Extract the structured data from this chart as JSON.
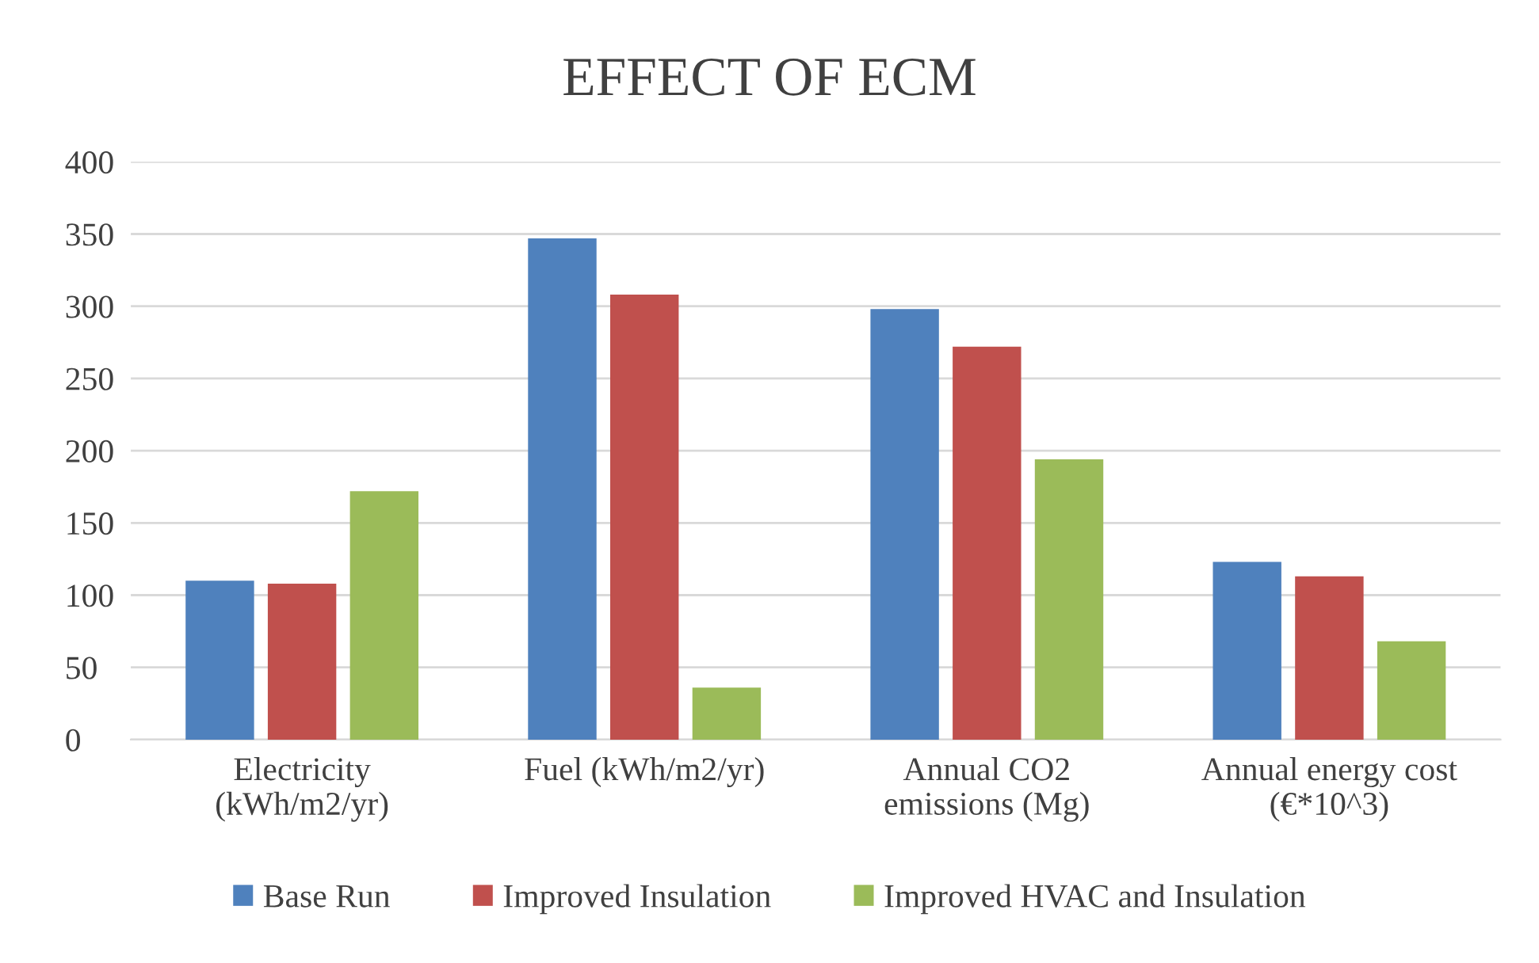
{
  "chart_data": {
    "type": "bar",
    "title": "EFFECT OF ECM",
    "categories": [
      "Electricity\n(kWh/m2/yr)",
      "Fuel (kWh/m2/yr)",
      "Annual CO2\nemissions (Mg)",
      "Annual energy cost\n(€*10^3)"
    ],
    "series": [
      {
        "name": "Base Run",
        "color": "#4f81bd",
        "values": [
          110,
          347,
          298,
          123
        ]
      },
      {
        "name": "Improved Insulation",
        "color": "#c0504d",
        "values": [
          108,
          308,
          272,
          113
        ]
      },
      {
        "name": "Improved HVAC and Insulation",
        "color": "#9bbb59",
        "values": [
          172,
          36,
          194,
          68
        ]
      }
    ],
    "ylim": [
      0,
      400
    ],
    "yticks": [
      0,
      50,
      100,
      150,
      200,
      250,
      300,
      350,
      400
    ],
    "grid": "y",
    "legend": "bottom"
  }
}
